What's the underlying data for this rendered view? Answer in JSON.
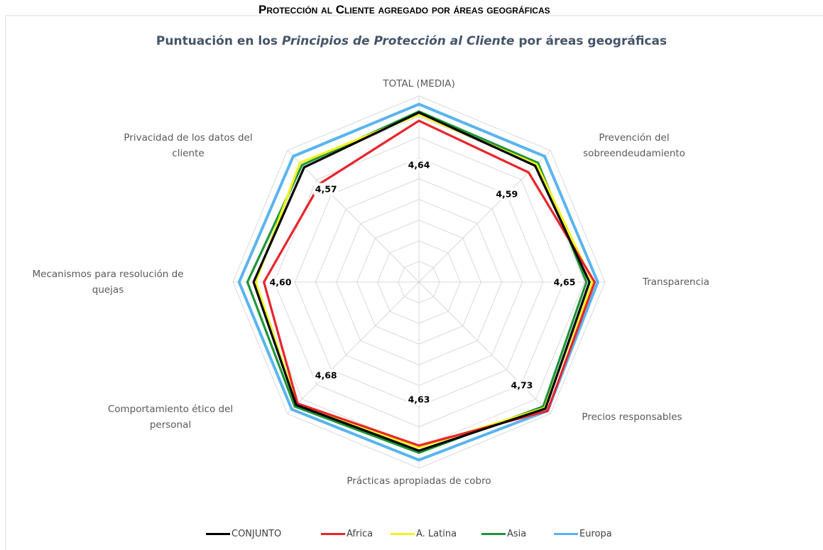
{
  "header": {
    "title": "Protección al Cliente agregado por áreas geográficas"
  },
  "chart_data": {
    "type": "radar",
    "title": [
      "Puntuación en los",
      "Principios de Protección al Cliente",
      "por áreas geográficas"
    ],
    "categories": [
      "TOTAL (MEDIA)",
      "Prevención del\nsobreendeudamiento",
      "Transparencia",
      "Precios responsables",
      "Prácticas apropiadas de cobro",
      "Comportamiento ético del\npersonal",
      "Mecanismos para resolución de\nquejas",
      "Privacidad de los datos del\ncliente"
    ],
    "ylim": [
      3.0,
      4.8
    ],
    "yticks": [
      3.0,
      3.2,
      3.4,
      3.6,
      3.8,
      4.0,
      4.2,
      4.4,
      4.6,
      4.8
    ],
    "grid": true,
    "legend": "bottom",
    "series": [
      {
        "name": "CONJUNTO",
        "color": "#000000",
        "values": [
          4.64,
          4.59,
          4.65,
          4.73,
          4.63,
          4.68,
          4.6,
          4.57
        ],
        "value_labels": [
          "4,64",
          "4,59",
          "4,65",
          "4,73",
          "4,63",
          "4,68",
          "4,60",
          "4,57"
        ]
      },
      {
        "name": "Africa",
        "color": "#e8242b",
        "values": [
          4.56,
          4.5,
          4.7,
          4.76,
          4.58,
          4.66,
          4.5,
          4.35
        ]
      },
      {
        "name": "A. Latina",
        "color": "#f2f21e",
        "values": [
          4.62,
          4.61,
          4.68,
          4.72,
          4.6,
          4.67,
          4.58,
          4.63
        ]
      },
      {
        "name": "Asia",
        "color": "#1e9638",
        "values": [
          4.65,
          4.63,
          4.62,
          4.7,
          4.65,
          4.7,
          4.66,
          4.6
        ]
      },
      {
        "name": "Europa",
        "color": "#5ab4ee",
        "values": [
          4.72,
          4.72,
          4.73,
          4.76,
          4.72,
          4.74,
          4.74,
          4.72
        ]
      }
    ]
  }
}
